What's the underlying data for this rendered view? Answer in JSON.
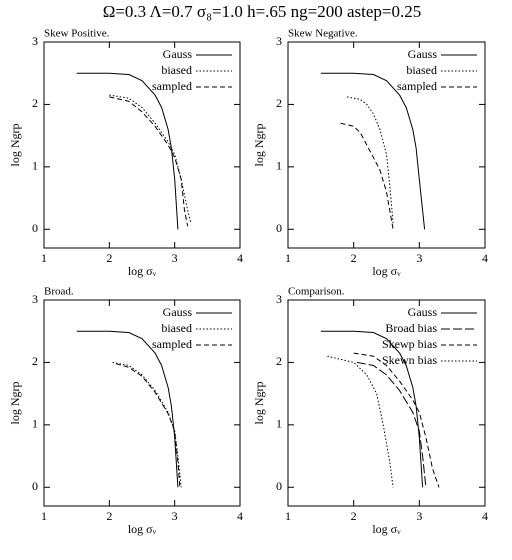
{
  "title": "Ω=0.3 Λ=0.7 σ₈=1.0 h=.65 ng=200 astep=0.25",
  "chart_data": [
    {
      "type": "line",
      "title": "Skew Positive.",
      "xlabel": "log σᵥ",
      "ylabel": "log Ngrp",
      "xlim": [
        1,
        4
      ],
      "ylim": [
        -0.3,
        3
      ],
      "xticks": [
        1,
        2,
        3,
        4
      ],
      "yticks": [
        0,
        1,
        2,
        3
      ],
      "legend": "top-right",
      "series": [
        {
          "name": "Gauss",
          "color": "#000",
          "style": "solid",
          "x": [
            1.5,
            2.0,
            2.3,
            2.5,
            2.7,
            2.8,
            2.9,
            2.95,
            3.0,
            3.05
          ],
          "values": [
            2.5,
            2.5,
            2.48,
            2.38,
            2.15,
            1.95,
            1.6,
            1.3,
            0.8,
            0
          ]
        },
        {
          "name": "biased",
          "color": "#000",
          "style": "dotted",
          "x": [
            2.0,
            2.3,
            2.5,
            2.7,
            2.9,
            3.0,
            3.1,
            3.2,
            3.25
          ],
          "values": [
            2.15,
            2.1,
            1.95,
            1.7,
            1.4,
            1.2,
            0.8,
            0.3,
            0.1
          ]
        },
        {
          "name": "sampled",
          "color": "#000",
          "style": "dashed",
          "x": [
            2.0,
            2.3,
            2.5,
            2.7,
            2.9,
            3.0,
            3.1,
            3.15,
            3.2
          ],
          "values": [
            2.12,
            2.05,
            1.88,
            1.65,
            1.35,
            1.15,
            0.8,
            0.3,
            0.05
          ]
        }
      ]
    },
    {
      "type": "line",
      "title": "Skew Negative.",
      "xlabel": "log σᵥ",
      "ylabel": "log Ngrp",
      "xlim": [
        1,
        4
      ],
      "ylim": [
        -0.3,
        3
      ],
      "xticks": [
        1,
        2,
        3,
        4
      ],
      "yticks": [
        0,
        1,
        2,
        3
      ],
      "legend": "top-right",
      "series": [
        {
          "name": "Gauss",
          "color": "#000",
          "style": "solid",
          "x": [
            1.5,
            2.0,
            2.3,
            2.5,
            2.7,
            2.8,
            2.9,
            2.95,
            3.0,
            3.08
          ],
          "values": [
            2.5,
            2.5,
            2.48,
            2.38,
            2.15,
            1.95,
            1.6,
            1.3,
            0.8,
            0
          ]
        },
        {
          "name": "biased",
          "color": "#000",
          "style": "dotted",
          "x": [
            1.9,
            2.1,
            2.2,
            2.3,
            2.4,
            2.5,
            2.55,
            2.6
          ],
          "values": [
            2.12,
            2.08,
            2.0,
            1.85,
            1.6,
            1.2,
            0.7,
            0.1
          ]
        },
        {
          "name": "sampled",
          "color": "#000",
          "style": "dashed",
          "x": [
            1.8,
            2.0,
            2.1,
            2.2,
            2.3,
            2.4,
            2.5,
            2.55,
            2.6
          ],
          "values": [
            1.7,
            1.65,
            1.55,
            1.35,
            1.15,
            0.95,
            0.6,
            0.3,
            0
          ]
        }
      ]
    },
    {
      "type": "line",
      "title": "Broad.",
      "xlabel": "log σᵥ",
      "ylabel": "log Ngrp",
      "xlim": [
        1,
        4
      ],
      "ylim": [
        -0.3,
        3
      ],
      "xticks": [
        1,
        2,
        3,
        4
      ],
      "yticks": [
        0,
        1,
        2,
        3
      ],
      "legend": "top-right",
      "series": [
        {
          "name": "Gauss",
          "color": "#000",
          "style": "solid",
          "x": [
            1.5,
            2.0,
            2.3,
            2.5,
            2.7,
            2.8,
            2.9,
            2.95,
            3.0,
            3.05
          ],
          "values": [
            2.5,
            2.5,
            2.48,
            2.38,
            2.15,
            1.95,
            1.6,
            1.3,
            0.8,
            0
          ]
        },
        {
          "name": "biased",
          "color": "#000",
          "style": "dotted",
          "x": [
            2.05,
            2.3,
            2.5,
            2.7,
            2.9,
            3.0,
            3.05,
            3.1
          ],
          "values": [
            2.0,
            1.95,
            1.8,
            1.55,
            1.2,
            0.9,
            0.5,
            0
          ]
        },
        {
          "name": "sampled",
          "color": "#000",
          "style": "dashed",
          "x": [
            2.1,
            2.3,
            2.5,
            2.7,
            2.9,
            3.0,
            3.05,
            3.08
          ],
          "values": [
            1.98,
            1.92,
            1.78,
            1.52,
            1.18,
            0.9,
            0.4,
            0
          ]
        }
      ]
    },
    {
      "type": "line",
      "title": "Comparison.",
      "xlabel": "log σᵥ",
      "ylabel": "log Ngrp",
      "xlim": [
        1,
        4
      ],
      "ylim": [
        -0.3,
        3
      ],
      "xticks": [
        1,
        2,
        3,
        4
      ],
      "yticks": [
        0,
        1,
        2,
        3
      ],
      "legend": "top-right",
      "series": [
        {
          "name": "Gauss",
          "color": "#000",
          "style": "solid",
          "x": [
            1.5,
            2.0,
            2.3,
            2.5,
            2.7,
            2.8,
            2.9,
            2.95,
            3.0,
            3.05
          ],
          "values": [
            2.5,
            2.5,
            2.48,
            2.38,
            2.15,
            1.95,
            1.6,
            1.3,
            0.8,
            0
          ]
        },
        {
          "name": "Broad bias",
          "color": "#000",
          "style": "longdash",
          "x": [
            2.05,
            2.3,
            2.5,
            2.7,
            2.9,
            3.0,
            3.05,
            3.1
          ],
          "values": [
            2.0,
            1.95,
            1.8,
            1.55,
            1.2,
            0.9,
            0.5,
            0
          ]
        },
        {
          "name": "Skewp bias",
          "color": "#000",
          "style": "dashed",
          "x": [
            2.0,
            2.3,
            2.5,
            2.7,
            2.9,
            3.0,
            3.1,
            3.2,
            3.3
          ],
          "values": [
            2.15,
            2.1,
            1.95,
            1.7,
            1.4,
            1.2,
            0.8,
            0.3,
            0
          ]
        },
        {
          "name": "Skewn bias",
          "color": "#000",
          "style": "dotted",
          "x": [
            1.6,
            2.0,
            2.2,
            2.35,
            2.45,
            2.55,
            2.6
          ],
          "values": [
            2.1,
            2.0,
            1.8,
            1.5,
            1.0,
            0.4,
            0
          ]
        }
      ]
    }
  ]
}
